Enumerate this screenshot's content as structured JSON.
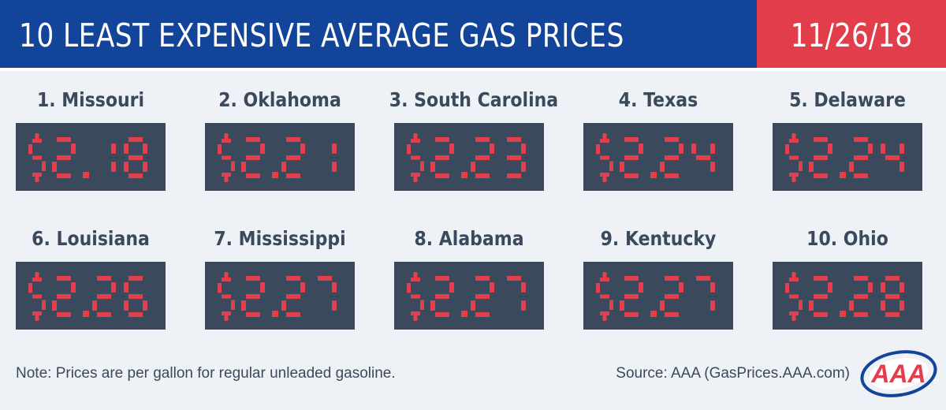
{
  "header": {
    "title": "10 LEAST EXPENSIVE AVERAGE GAS PRICES",
    "date": "11/26/18"
  },
  "colors": {
    "header_blue": "#12459a",
    "date_red": "#e23d4a",
    "panel": "#3a4a5c",
    "digit_red": "#e0404e",
    "background": "#eef1f5"
  },
  "prices": [
    {
      "rank_label": "1. Missouri",
      "price": "$2.18"
    },
    {
      "rank_label": "2. Oklahoma",
      "price": "$2.21"
    },
    {
      "rank_label": "3. South Carolina",
      "price": "$2.23"
    },
    {
      "rank_label": "4. Texas",
      "price": "$2.24"
    },
    {
      "rank_label": "5. Delaware",
      "price": "$2.24"
    },
    {
      "rank_label": "6. Louisiana",
      "price": "$2.26"
    },
    {
      "rank_label": "7. Mississippi",
      "price": "$2.27"
    },
    {
      "rank_label": "8. Alabama",
      "price": "$2.27"
    },
    {
      "rank_label": "9. Kentucky",
      "price": "$2.27"
    },
    {
      "rank_label": "10. Ohio",
      "price": "$2.28"
    }
  ],
  "footer": {
    "note": "Note: Prices are per gallon for regular unleaded gasoline.",
    "source": "Source: AAA (GasPrices.AAA.com)",
    "logo_text": "AAA"
  }
}
